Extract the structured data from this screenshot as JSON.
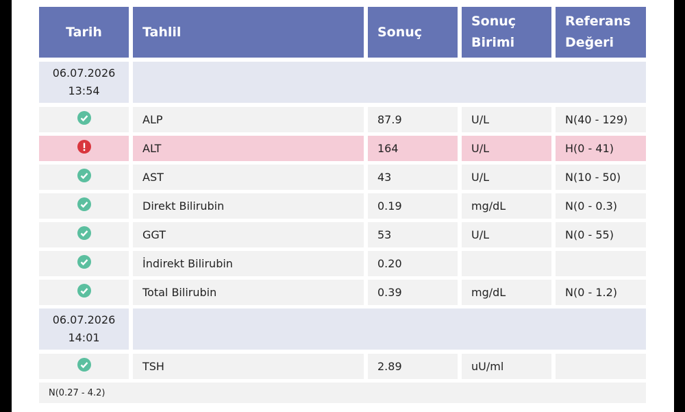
{
  "header": [
    "Tarih",
    "Tahlil",
    "Sonuç",
    "Sonuç Birimi",
    "Referans Değeri"
  ],
  "groups": [
    {
      "date": "06.07.2026",
      "time": "13:54",
      "rows": [
        {
          "test": "ALP",
          "result": "87.9",
          "unit": "U/L",
          "ref": "N(40 - 129)"
        },
        {
          "test": "ALT",
          "result": "164",
          "unit": "U/L",
          "ref": "H(0 - 41)"
        },
        {
          "test": "AST",
          "result": "43",
          "unit": "U/L",
          "ref": "N(10 - 50)"
        },
        {
          "test": "Direkt Bilirubin",
          "result": "0.19",
          "unit": "mg/dL",
          "ref": "N(0 - 0.3)"
        },
        {
          "test": "GGT",
          "result": "53",
          "unit": "U/L",
          "ref": "N(0 - 55)"
        },
        {
          "test": "İndirekt Bilirubin",
          "result": "0.20"
        },
        {
          "test": "Total Bilirubin",
          "result": "0.39",
          "unit": "mg/dL",
          "ref": "N(0 - 1.2)"
        }
      ]
    },
    {
      "date": "06.07.2026",
      "time": "14:01",
      "rows": [
        {
          "test": "TSH",
          "result": "2.89",
          "unit": "uU/ml"
        }
      ]
    }
  ],
  "note": "N(0.27 - 4.2)"
}
